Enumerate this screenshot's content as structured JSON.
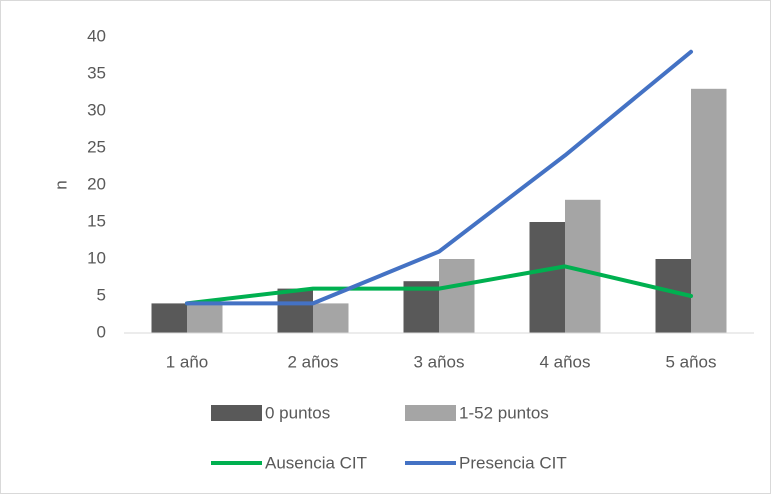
{
  "chart_data": {
    "type": "bar",
    "y_label": "n",
    "categories": [
      "1 año",
      "2 años",
      "3 años",
      "4 años",
      "5 años"
    ],
    "series": [
      {
        "name": "0 puntos",
        "type": "bar",
        "color": "#595959",
        "values": [
          4,
          6,
          7,
          15,
          10
        ]
      },
      {
        "name": "1-52 puntos",
        "type": "bar",
        "color": "#a5a5a5",
        "values": [
          4,
          4,
          10,
          18,
          33
        ]
      },
      {
        "name": "Ausencia CIT",
        "type": "line",
        "color": "#00b050",
        "values": [
          4,
          6,
          6,
          9,
          5
        ]
      },
      {
        "name": "Presencia CIT",
        "type": "line",
        "color": "#4472c4",
        "values": [
          4,
          4,
          11,
          24,
          38
        ]
      }
    ],
    "ylim": [
      0,
      40
    ],
    "yticks": [
      0,
      5,
      10,
      15,
      20,
      25,
      30,
      35,
      40
    ],
    "grid": false,
    "legend": "bottom"
  }
}
